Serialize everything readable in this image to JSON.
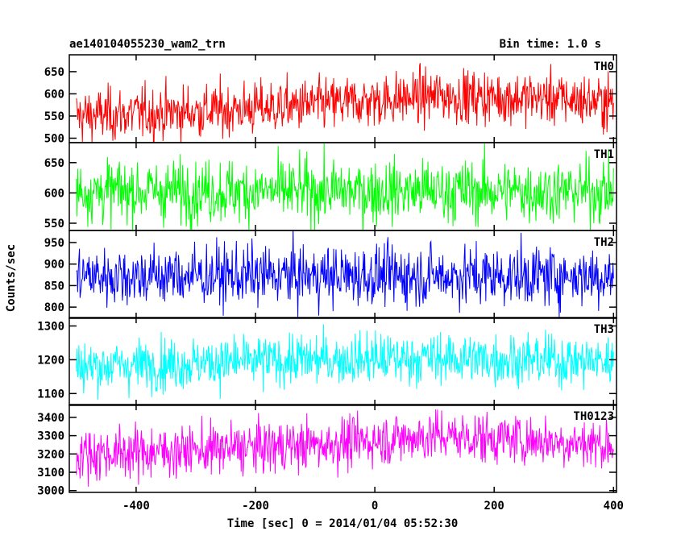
{
  "header": {
    "title": "ae140104055230_wam2_trn",
    "bin_time": "Bin time: 1.0 s"
  },
  "chart_data": {
    "type": "line",
    "xlabel": "Time [sec] 0 = 2014/01/04 05:52:30",
    "ylabel": "Counts/sec",
    "xlim": [
      -512,
      405
    ],
    "xticks": [
      -400,
      -200,
      0,
      200,
      400
    ],
    "x_range": [
      -500,
      400
    ],
    "bin_time_s": 1.0,
    "panels": [
      {
        "name": "TH0",
        "color": "#ff0000",
        "ylim": [
          490,
          688
        ],
        "yticks": [
          500,
          550,
          600,
          650
        ],
        "trend": [
          [
            -500,
            550
          ],
          [
            -300,
            560
          ],
          [
            -100,
            575
          ],
          [
            100,
            595
          ],
          [
            300,
            590
          ],
          [
            400,
            580
          ]
        ],
        "noise": 30
      },
      {
        "name": "TH1",
        "color": "#00ff00",
        "ylim": [
          538,
          683
        ],
        "yticks": [
          550,
          600,
          650
        ],
        "trend": [
          [
            -500,
            603
          ],
          [
            400,
            603
          ]
        ],
        "noise": 26
      },
      {
        "name": "TH2",
        "color": "#0000ff",
        "ylim": [
          774,
          978
        ],
        "yticks": [
          800,
          850,
          900,
          950
        ],
        "trend": [
          [
            -500,
            873
          ],
          [
            400,
            873
          ]
        ],
        "noise": 35
      },
      {
        "name": "TH3",
        "color": "#00ffff",
        "ylim": [
          1065,
          1325
        ],
        "yticks": [
          1100,
          1200,
          1300
        ],
        "trend": [
          [
            -500,
            1180
          ],
          [
            -100,
            1200
          ],
          [
            100,
            1205
          ],
          [
            400,
            1195
          ]
        ],
        "noise": 38
      },
      {
        "name": "TH0123",
        "color": "#ff00ff",
        "ylim": [
          2990,
          3470
        ],
        "yticks": [
          3000,
          3100,
          3200,
          3300,
          3400
        ],
        "trend": [
          [
            -500,
            3200
          ],
          [
            -300,
            3220
          ],
          [
            -100,
            3250
          ],
          [
            100,
            3300
          ],
          [
            300,
            3270
          ],
          [
            400,
            3250
          ]
        ],
        "noise": 70
      }
    ]
  }
}
